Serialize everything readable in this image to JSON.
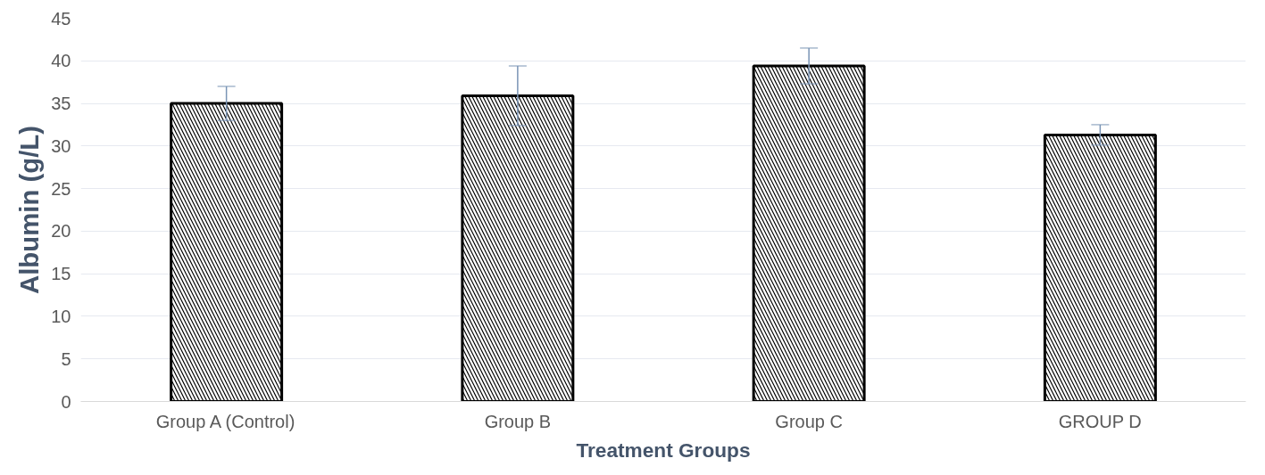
{
  "chart_data": {
    "type": "bar",
    "xlabel": "Treatment Groups",
    "ylabel": "Albumin (g/L)",
    "categories": [
      "Group A (Control)",
      "Group B",
      "Group C",
      "GROUP D"
    ],
    "values": [
      35.0,
      35.9,
      39.4,
      31.3
    ],
    "errors": [
      2.0,
      3.5,
      2.1,
      1.2
    ],
    "color": "#000000",
    "ylim": [
      0,
      45
    ],
    "yticks": [
      0,
      5,
      10,
      15,
      20,
      25,
      30,
      35,
      40,
      45
    ],
    "grid": "y"
  }
}
